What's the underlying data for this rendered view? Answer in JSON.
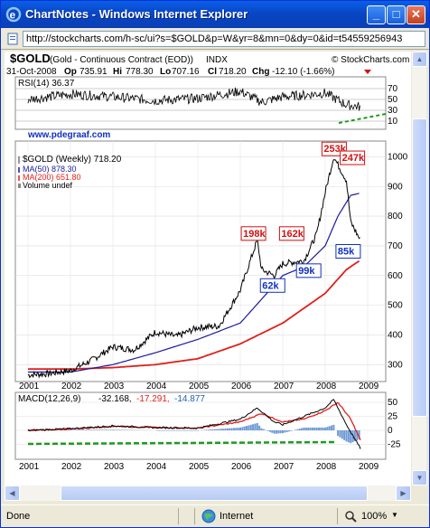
{
  "window": {
    "title": "ChartNotes - Windows Internet Explorer",
    "minimize": "_",
    "maximize": "□",
    "close": "✕"
  },
  "address": {
    "url": "http://stockcharts.com/h-sc/ui?s=$GOLD&p=W&yr=8&mn=0&dy=0&id=t54559256943"
  },
  "chart": {
    "symbol": "$GOLD",
    "name": "(Gold - Continuous Contract (EOD))",
    "exchange": "INDX",
    "credit": "© StockCharts.com",
    "date": "31-Oct-2008",
    "op_label": "Op",
    "op": "735.91",
    "hi_label": "Hi",
    "hi": "778.30",
    "lo_label": "Lo",
    "lo": "707.16",
    "cl_label": "Cl",
    "cl": "718.20",
    "chg_label": "Chg",
    "chg": "-12.10 (-1.66%)",
    "rsi_label": "RSI(14) 36.37",
    "rsi_ticks": [
      "70",
      "50",
      "30",
      "10"
    ],
    "watermark": "www.pdegraaf.com",
    "legend_price": "$GOLD (Weekly) 718.20",
    "legend_ma50": "MA(50) 878.30",
    "legend_ma200": "MA(200) 651.80",
    "legend_vol": "Volume undef",
    "price_ticks": [
      "1000",
      "900",
      "800",
      "700",
      "600",
      "500",
      "400",
      "300"
    ],
    "years": [
      "2001",
      "2002",
      "2003",
      "2004",
      "2005",
      "2006",
      "2007",
      "2008",
      "2009"
    ],
    "annotations": [
      "253k",
      "247k",
      "198k",
      "162k",
      "99k",
      "85k",
      "62k"
    ],
    "macd_label_prefix": "MACD(12,26,9)",
    "macd_v1": "-32.168,",
    "macd_v2": "-17.291,",
    "macd_v3": "-14.877",
    "macd_ticks": [
      "50",
      "25",
      "0",
      "-25"
    ],
    "colors": {
      "price": "#000000",
      "ma50": "#1a1aa0",
      "ma200": "#e0201a",
      "rsi_guide": "#1f9a1f",
      "label_red": "#d01010",
      "label_blue": "#1030c0",
      "macd_hist": "#3c78c8"
    }
  },
  "chart_data": [
    {
      "type": "line",
      "title": "$GOLD (Weekly)",
      "x_label": "",
      "y_label": "",
      "x": [
        "2001",
        "2002",
        "2003",
        "2004",
        "2005",
        "2006",
        "2007",
        "2008",
        "2009"
      ],
      "ylim": [
        240,
        1050
      ],
      "series": [
        {
          "name": "$GOLD (Weekly)",
          "x": [
            2001.0,
            2001.5,
            2002.0,
            2002.5,
            2003.0,
            2003.5,
            2004.0,
            2004.5,
            2005.0,
            2005.5,
            2006.0,
            2006.4,
            2006.5,
            2006.8,
            2007.0,
            2007.5,
            2007.8,
            2008.0,
            2008.2,
            2008.5,
            2008.6,
            2008.83
          ],
          "y": [
            265,
            270,
            280,
            315,
            360,
            350,
            410,
            395,
            425,
            430,
            550,
            720,
            620,
            600,
            640,
            650,
            740,
            880,
            1000,
            920,
            780,
            718
          ]
        },
        {
          "name": "MA(50)",
          "x": [
            2001.0,
            2002.0,
            2003.0,
            2004.0,
            2005.0,
            2006.0,
            2006.5,
            2007.0,
            2007.5,
            2008.0,
            2008.3,
            2008.6,
            2008.83
          ],
          "y": [
            275,
            275,
            300,
            340,
            385,
            440,
            520,
            600,
            630,
            700,
            800,
            870,
            878
          ]
        },
        {
          "name": "MA(200)",
          "x": [
            2001.0,
            2002.0,
            2003.0,
            2004.0,
            2005.0,
            2006.0,
            2007.0,
            2007.5,
            2008.0,
            2008.5,
            2008.83
          ],
          "y": [
            285,
            285,
            290,
            300,
            320,
            370,
            440,
            490,
            540,
            620,
            652
          ]
        }
      ]
    },
    {
      "type": "line",
      "title": "RSI(14)",
      "ylim": [
        10,
        80
      ],
      "series": [
        {
          "name": "RSI(14)",
          "x": [
            2001.0,
            2002.0,
            2003.0,
            2004.0,
            2005.0,
            2006.0,
            2006.5,
            2007.0,
            2007.5,
            2008.0,
            2008.5,
            2008.83
          ],
          "y": [
            50,
            60,
            55,
            48,
            52,
            65,
            45,
            55,
            58,
            62,
            40,
            36.37
          ]
        }
      ]
    },
    {
      "type": "line",
      "title": "MACD(12,26,9)",
      "ylim": [
        -35,
        60
      ],
      "series": [
        {
          "name": "MACD",
          "x": [
            2001.0,
            2002.0,
            2003.0,
            2004.0,
            2005.0,
            2006.0,
            2006.4,
            2006.8,
            2007.0,
            2007.5,
            2008.0,
            2008.2,
            2008.5,
            2008.83
          ],
          "y": [
            0,
            3,
            8,
            5,
            4,
            20,
            40,
            15,
            10,
            25,
            40,
            55,
            10,
            -32.168
          ]
        },
        {
          "name": "Signal",
          "x": [
            2001.0,
            2002.0,
            2003.0,
            2004.0,
            2005.0,
            2006.0,
            2006.5,
            2007.0,
            2007.5,
            2008.0,
            2008.3,
            2008.6,
            2008.83
          ],
          "y": [
            0,
            2,
            7,
            5,
            4,
            15,
            30,
            15,
            20,
            35,
            50,
            20,
            -17.291
          ]
        }
      ]
    }
  ],
  "statusbar": {
    "left": "Done",
    "zone": "Internet",
    "zoom": "100%"
  }
}
